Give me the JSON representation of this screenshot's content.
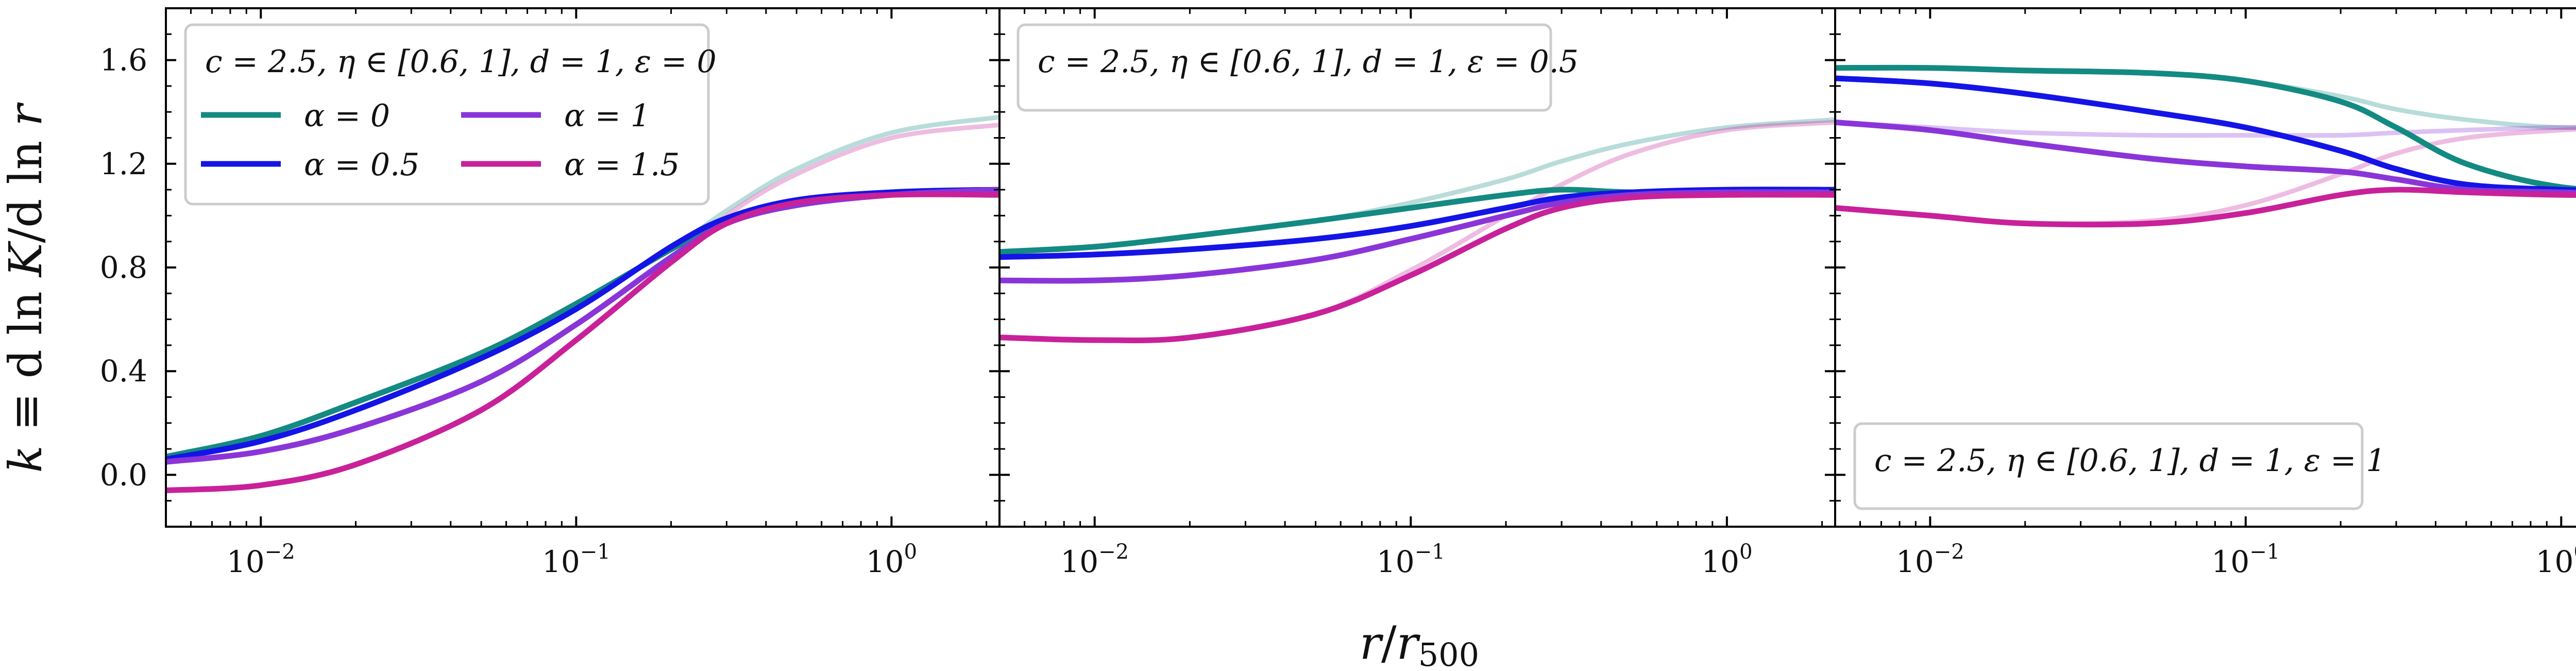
{
  "chart_data": [
    {
      "type": "line",
      "panel": "left",
      "legend_title": "c = 2.5,  η ∈ [0.6, 1],  d = 1,  ε = 0",
      "legend_location": "top-left",
      "xscale": "log",
      "xlim": [
        0.005,
        2.2
      ],
      "ylim": [
        -0.2,
        1.8
      ],
      "yticks": [
        "0.0",
        "0.4",
        "0.8",
        "1.2",
        "1.6"
      ],
      "xticks": [
        "10^-2",
        "10^-1",
        "10^0"
      ],
      "series": [
        {
          "name": "α = 0",
          "color": "#138a82",
          "x": [
            0.005,
            0.01,
            0.02,
            0.05,
            0.1,
            0.2,
            0.3,
            0.5,
            1.0,
            2.2
          ],
          "y": [
            0.07,
            0.15,
            0.28,
            0.47,
            0.66,
            0.87,
            0.98,
            1.05,
            1.09,
            1.1
          ]
        },
        {
          "name": "α = 0.5",
          "color": "#1414e6",
          "x": [
            0.005,
            0.01,
            0.02,
            0.05,
            0.1,
            0.2,
            0.3,
            0.5,
            1.0,
            2.2
          ],
          "y": [
            0.06,
            0.13,
            0.25,
            0.45,
            0.64,
            0.88,
            0.99,
            1.06,
            1.09,
            1.1
          ]
        },
        {
          "name": "α = 1",
          "color": "#8a35d8",
          "x": [
            0.005,
            0.01,
            0.02,
            0.05,
            0.1,
            0.2,
            0.3,
            0.5,
            1.0,
            2.2
          ],
          "y": [
            0.05,
            0.09,
            0.18,
            0.36,
            0.58,
            0.84,
            0.97,
            1.04,
            1.08,
            1.1
          ]
        },
        {
          "name": "α = 1.5",
          "color": "#c8219a",
          "x": [
            0.005,
            0.01,
            0.02,
            0.05,
            0.1,
            0.2,
            0.3,
            0.5,
            1.0,
            2.2
          ],
          "y": [
            -0.06,
            -0.04,
            0.04,
            0.25,
            0.52,
            0.82,
            0.97,
            1.05,
            1.08,
            1.08
          ]
        },
        {
          "name": "α = 0 (η = 0.6)",
          "color": "#138a82",
          "faint": true,
          "x": [
            0.005,
            0.01,
            0.02,
            0.05,
            0.1,
            0.2,
            0.3,
            0.5,
            1.0,
            2.2
          ],
          "y": [
            0.07,
            0.15,
            0.28,
            0.47,
            0.66,
            0.87,
            1.02,
            1.18,
            1.32,
            1.38
          ]
        },
        {
          "name": "α = 1.5 (η = 0.6)",
          "color": "#c8219a",
          "faint": true,
          "x": [
            0.005,
            0.01,
            0.02,
            0.05,
            0.1,
            0.2,
            0.3,
            0.5,
            1.0,
            2.2
          ],
          "y": [
            -0.06,
            -0.04,
            0.04,
            0.25,
            0.52,
            0.82,
            1.0,
            1.16,
            1.3,
            1.35
          ]
        }
      ]
    },
    {
      "type": "line",
      "panel": "middle",
      "legend_title": "c = 2.5,  η ∈ [0.6, 1],  d = 1,  ε = 0.5",
      "legend_location": "top-left",
      "xscale": "log",
      "xlim": [
        0.005,
        2.2
      ],
      "ylim": [
        -0.2,
        1.8
      ],
      "series": [
        {
          "name": "α = 0",
          "color": "#138a82",
          "x": [
            0.005,
            0.01,
            0.02,
            0.05,
            0.1,
            0.2,
            0.3,
            0.5,
            1.0,
            2.2
          ],
          "y": [
            0.86,
            0.88,
            0.92,
            0.98,
            1.03,
            1.08,
            1.1,
            1.09,
            1.09,
            1.1
          ]
        },
        {
          "name": "α = 0.5",
          "color": "#1414e6",
          "x": [
            0.005,
            0.01,
            0.02,
            0.05,
            0.1,
            0.2,
            0.3,
            0.5,
            1.0,
            2.2
          ],
          "y": [
            0.84,
            0.85,
            0.87,
            0.91,
            0.96,
            1.03,
            1.07,
            1.09,
            1.1,
            1.1
          ]
        },
        {
          "name": "α = 1",
          "color": "#8a35d8",
          "x": [
            0.005,
            0.01,
            0.02,
            0.05,
            0.1,
            0.2,
            0.3,
            0.5,
            1.0,
            2.2
          ],
          "y": [
            0.75,
            0.75,
            0.77,
            0.83,
            0.91,
            1.0,
            1.05,
            1.08,
            1.09,
            1.09
          ]
        },
        {
          "name": "α = 1.5",
          "color": "#c8219a",
          "x": [
            0.005,
            0.01,
            0.02,
            0.05,
            0.1,
            0.2,
            0.3,
            0.5,
            1.0,
            2.2
          ],
          "y": [
            0.53,
            0.52,
            0.53,
            0.62,
            0.77,
            0.95,
            1.03,
            1.07,
            1.08,
            1.08
          ]
        },
        {
          "name": "α = 0 (η = 0.6)",
          "color": "#138a82",
          "faint": true,
          "x": [
            0.005,
            0.01,
            0.02,
            0.05,
            0.1,
            0.2,
            0.3,
            0.5,
            1.0,
            2.2
          ],
          "y": [
            0.86,
            0.88,
            0.92,
            0.98,
            1.05,
            1.14,
            1.21,
            1.28,
            1.34,
            1.37
          ]
        },
        {
          "name": "α = 1.5 (η = 0.6)",
          "color": "#c8219a",
          "faint": true,
          "x": [
            0.005,
            0.01,
            0.02,
            0.05,
            0.1,
            0.2,
            0.3,
            0.5,
            1.0,
            2.2
          ],
          "y": [
            0.53,
            0.52,
            0.53,
            0.62,
            0.79,
            1.0,
            1.12,
            1.24,
            1.33,
            1.36
          ]
        }
      ]
    },
    {
      "type": "line",
      "panel": "right",
      "legend_title": "c = 2.5,  η ∈ [0.6, 1],  d = 1,  ε = 1",
      "legend_location": "bottom-left",
      "xscale": "log",
      "xlim": [
        0.005,
        2.2
      ],
      "ylim": [
        -0.2,
        1.8
      ],
      "series": [
        {
          "name": "α = 0",
          "color": "#138a82",
          "x": [
            0.005,
            0.01,
            0.02,
            0.05,
            0.1,
            0.2,
            0.3,
            0.5,
            1.0,
            2.2
          ],
          "y": [
            1.57,
            1.57,
            1.56,
            1.55,
            1.52,
            1.44,
            1.34,
            1.2,
            1.11,
            1.09
          ]
        },
        {
          "name": "α = 0.5",
          "color": "#1414e6",
          "x": [
            0.005,
            0.01,
            0.02,
            0.05,
            0.1,
            0.2,
            0.3,
            0.5,
            1.0,
            2.2
          ],
          "y": [
            1.53,
            1.51,
            1.47,
            1.4,
            1.34,
            1.25,
            1.18,
            1.12,
            1.1,
            1.09
          ]
        },
        {
          "name": "α = 1",
          "color": "#8a35d8",
          "x": [
            0.005,
            0.01,
            0.02,
            0.05,
            0.1,
            0.2,
            0.3,
            0.5,
            1.0,
            2.2
          ],
          "y": [
            1.36,
            1.33,
            1.28,
            1.22,
            1.19,
            1.17,
            1.14,
            1.1,
            1.09,
            1.08
          ]
        },
        {
          "name": "α = 1.5",
          "color": "#c8219a",
          "x": [
            0.005,
            0.01,
            0.02,
            0.05,
            0.1,
            0.2,
            0.3,
            0.5,
            1.0,
            2.2
          ],
          "y": [
            1.03,
            1.0,
            0.97,
            0.97,
            1.01,
            1.08,
            1.1,
            1.09,
            1.08,
            1.08
          ]
        },
        {
          "name": "α = 0 (η = 0.6)",
          "color": "#138a82",
          "faint": true,
          "x": [
            0.005,
            0.01,
            0.02,
            0.05,
            0.1,
            0.2,
            0.3,
            0.5,
            1.0,
            2.2
          ],
          "y": [
            1.57,
            1.57,
            1.56,
            1.55,
            1.52,
            1.46,
            1.41,
            1.37,
            1.34,
            1.35
          ]
        },
        {
          "name": "α = 1 (η = 0.6)",
          "color": "#8a35d8",
          "faint": true,
          "x": [
            0.005,
            0.01,
            0.02,
            0.05,
            0.1,
            0.2,
            0.3,
            0.5,
            1.0,
            2.2
          ],
          "y": [
            1.36,
            1.34,
            1.32,
            1.31,
            1.31,
            1.31,
            1.32,
            1.33,
            1.34,
            1.34
          ]
        },
        {
          "name": "α = 1.5 (η = 0.6)",
          "color": "#c8219a",
          "faint": true,
          "x": [
            0.005,
            0.01,
            0.02,
            0.05,
            0.1,
            0.2,
            0.3,
            0.5,
            1.0,
            2.2
          ],
          "y": [
            1.03,
            1.0,
            0.97,
            0.98,
            1.04,
            1.16,
            1.24,
            1.3,
            1.33,
            1.35
          ]
        }
      ]
    }
  ],
  "axes": {
    "ylabel_parts": [
      "k",
      " ≡ d ln ",
      "K",
      "/d ln ",
      "r"
    ],
    "xlabel_parts": [
      "r",
      "/",
      "r",
      "500"
    ],
    "ytick_labels": [
      "0.0",
      "0.4",
      "0.8",
      "1.2",
      "1.6"
    ],
    "ytick_values": [
      0.0,
      0.4,
      0.8,
      1.2,
      1.6
    ],
    "xtick_labels": [
      {
        "base": "10",
        "exp": "−2"
      },
      {
        "base": "10",
        "exp": "−1"
      },
      {
        "base": "10",
        "exp": "0"
      }
    ],
    "xtick_values": [
      0.01,
      0.1,
      1.0
    ]
  },
  "legend": {
    "entries": [
      {
        "label": "α = 0",
        "color": "#138a82"
      },
      {
        "label": "α = 1",
        "color": "#8a35d8"
      },
      {
        "label": "α = 0.5",
        "color": "#1414e6"
      },
      {
        "label": "α = 1.5",
        "color": "#c8219a"
      }
    ]
  }
}
